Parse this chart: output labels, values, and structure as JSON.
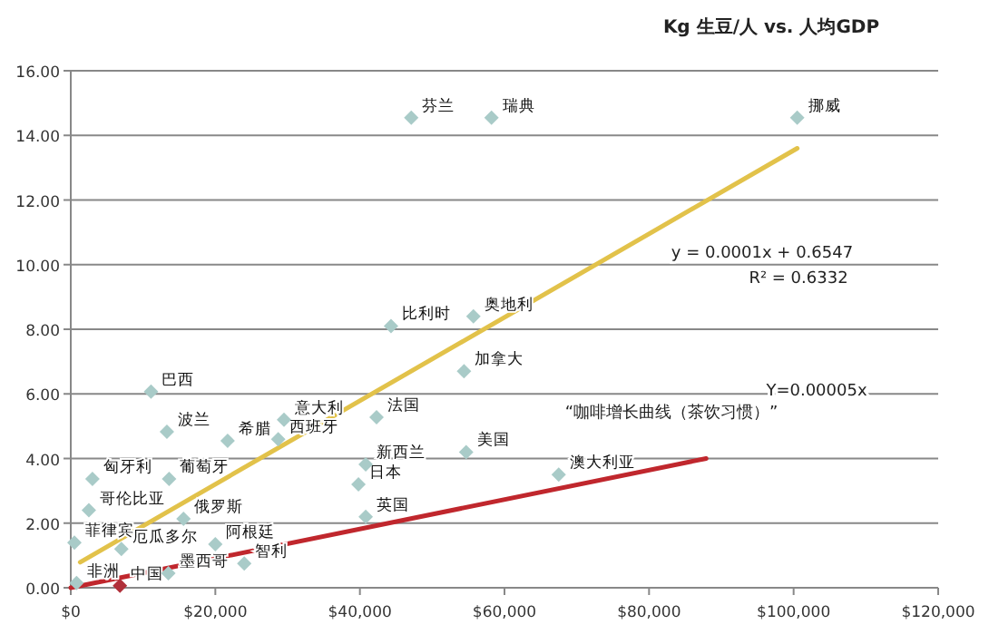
{
  "chart_data": {
    "type": "scatter",
    "title": "Kg 生豆/人 vs. 人均GDP",
    "grid": "y",
    "xlim": [
      0,
      120000
    ],
    "xticks": [
      {
        "value": 0,
        "label": "$0"
      },
      {
        "value": 20000,
        "label": "$20,000"
      },
      {
        "value": 40000,
        "label": "$40,000"
      },
      {
        "value": 60000,
        "label": "$60,000"
      },
      {
        "value": 80000,
        "label": "$80,000"
      },
      {
        "value": 100000,
        "label": "$100,000"
      },
      {
        "value": 120000,
        "label": "$120,000"
      }
    ],
    "ylim": [
      0,
      16
    ],
    "yticks": [
      {
        "value": 0,
        "label": "0.00"
      },
      {
        "value": 2,
        "label": "2.00"
      },
      {
        "value": 4,
        "label": "4.00"
      },
      {
        "value": 6,
        "label": "6.00"
      },
      {
        "value": 8,
        "label": "8.00"
      },
      {
        "value": 10,
        "label": "10.00"
      },
      {
        "value": 12,
        "label": "12.00"
      },
      {
        "value": 14,
        "label": "14.00"
      },
      {
        "value": 16,
        "label": "16.00"
      }
    ],
    "series": [
      {
        "type": "scatter",
        "marker": "diamond",
        "x": [
          47100,
          58200,
          100500,
          44300,
          55700,
          54400,
          11100,
          13300,
          21700,
          29500,
          28700,
          3000,
          13600,
          15600,
          42300,
          40800,
          39800,
          40800,
          54700,
          67500,
          2500,
          500,
          800,
          7000,
          20000,
          24000,
          13500,
          6800
        ],
        "values": [
          14.55,
          14.55,
          14.55,
          8.1,
          8.4,
          6.7,
          6.07,
          4.83,
          4.55,
          5.2,
          4.6,
          3.37,
          3.37,
          2.13,
          5.28,
          3.82,
          3.2,
          2.2,
          4.2,
          3.5,
          2.4,
          1.4,
          0.15,
          1.2,
          1.35,
          0.75,
          0.45,
          0.06
        ],
        "colors": [
          "#a9cbc8",
          "#a9cbc8",
          "#a9cbc8",
          "#a9cbc8",
          "#a9cbc8",
          "#a9cbc8",
          "#a9cbc8",
          "#a9cbc8",
          "#a9cbc8",
          "#a9cbc8",
          "#a9cbc8",
          "#a9cbc8",
          "#a9cbc8",
          "#a9cbc8",
          "#a9cbc8",
          "#a9cbc8",
          "#a9cbc8",
          "#a9cbc8",
          "#a9cbc8",
          "#a9cbc8",
          "#a9cbc8",
          "#a9cbc8",
          "#a9cbc8",
          "#a9cbc8",
          "#a9cbc8",
          "#a9cbc8",
          "#a9cbc8",
          "#b0303a"
        ]
      },
      {
        "type": "line",
        "color": "#e2c24a",
        "x": [
          1300,
          100500
        ],
        "values": [
          0.79,
          13.6
        ]
      },
      {
        "type": "line",
        "color": "#c0272d",
        "x": [
          0,
          87900
        ],
        "values": [
          0,
          4.0
        ]
      }
    ],
    "annotations": [
      {
        "text": "芬兰",
        "x": 47100,
        "y": 14.55
      },
      {
        "text": "瑞典",
        "x": 58200,
        "y": 14.55
      },
      {
        "text": "挪威",
        "x": 100500,
        "y": 14.55
      },
      {
        "text": "比利时",
        "x": 44300,
        "y": 8.1
      },
      {
        "text": "奥地利",
        "x": 55700,
        "y": 8.4
      },
      {
        "text": "加拿大",
        "x": 54400,
        "y": 6.7
      },
      {
        "text": "巴西",
        "x": 11100,
        "y": 6.07
      },
      {
        "text": "波兰",
        "x": 13300,
        "y": 4.83
      },
      {
        "text": "希腊",
        "x": 21700,
        "y": 4.55
      },
      {
        "text": "意大利",
        "x": 29500,
        "y": 5.2
      },
      {
        "text": "西班牙",
        "x": 28700,
        "y": 4.6
      },
      {
        "text": "匈牙利",
        "x": 3000,
        "y": 3.37
      },
      {
        "text": "葡萄牙",
        "x": 13600,
        "y": 3.37
      },
      {
        "text": "俄罗斯",
        "x": 15600,
        "y": 2.13
      },
      {
        "text": "法国",
        "x": 42300,
        "y": 5.28
      },
      {
        "text": "新西兰",
        "x": 40800,
        "y": 3.82
      },
      {
        "text": "日本",
        "x": 39800,
        "y": 3.2
      },
      {
        "text": "英国",
        "x": 40800,
        "y": 2.2
      },
      {
        "text": "美国",
        "x": 54700,
        "y": 4.2
      },
      {
        "text": "澳大利亚",
        "x": 67500,
        "y": 3.5
      },
      {
        "text": "哥伦比亚",
        "x": 2500,
        "y": 2.4
      },
      {
        "text": "菲律宾",
        "x": 500,
        "y": 1.4
      },
      {
        "text": "非洲",
        "x": 800,
        "y": 0.15
      },
      {
        "text": "厄瓜多尔",
        "x": 7000,
        "y": 1.2
      },
      {
        "text": "阿根廷",
        "x": 20000,
        "y": 1.35
      },
      {
        "text": "智利",
        "x": 24000,
        "y": 0.75
      },
      {
        "text": "墨西哥",
        "x": 13500,
        "y": 0.45
      },
      {
        "text": "中国",
        "x": 6800,
        "y": 0.06
      },
      "y = 0.0001x + 0.6547",
      "R² = 0.6332",
      "“咖啡增长曲线（茶饮习惯）”",
      "Y=0.00005x"
    ]
  }
}
